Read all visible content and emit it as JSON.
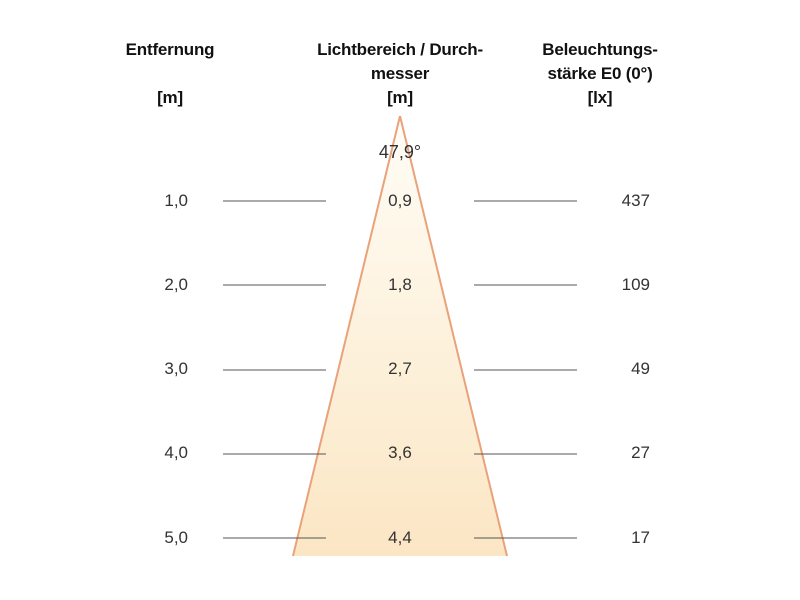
{
  "headers": {
    "distance": {
      "line1": "Entfernung",
      "unit": "[m]"
    },
    "diameter": {
      "line1": "Lichtbereich / Durch-",
      "line2": "messer",
      "unit": "[m]"
    },
    "illuminance": {
      "line1": "Beleuchtungs-",
      "line2": "stärke E0 (0°)",
      "unit": "[lx]"
    }
  },
  "beam_angle": "47,9°",
  "rows": [
    {
      "distance": "1,0",
      "diameter": "0,9",
      "lux": "437"
    },
    {
      "distance": "2,0",
      "diameter": "1,8",
      "lux": "109"
    },
    {
      "distance": "3,0",
      "diameter": "2,7",
      "lux": "49"
    },
    {
      "distance": "4,0",
      "diameter": "3,6",
      "lux": "27"
    },
    {
      "distance": "5,0",
      "diameter": "4,4",
      "lux": "17"
    }
  ],
  "colors": {
    "cone_fill_top": "#fffdf6",
    "cone_fill_bottom": "#fbe6c4",
    "cone_edge": "#e9a27a",
    "guide_line": "#555555"
  }
}
